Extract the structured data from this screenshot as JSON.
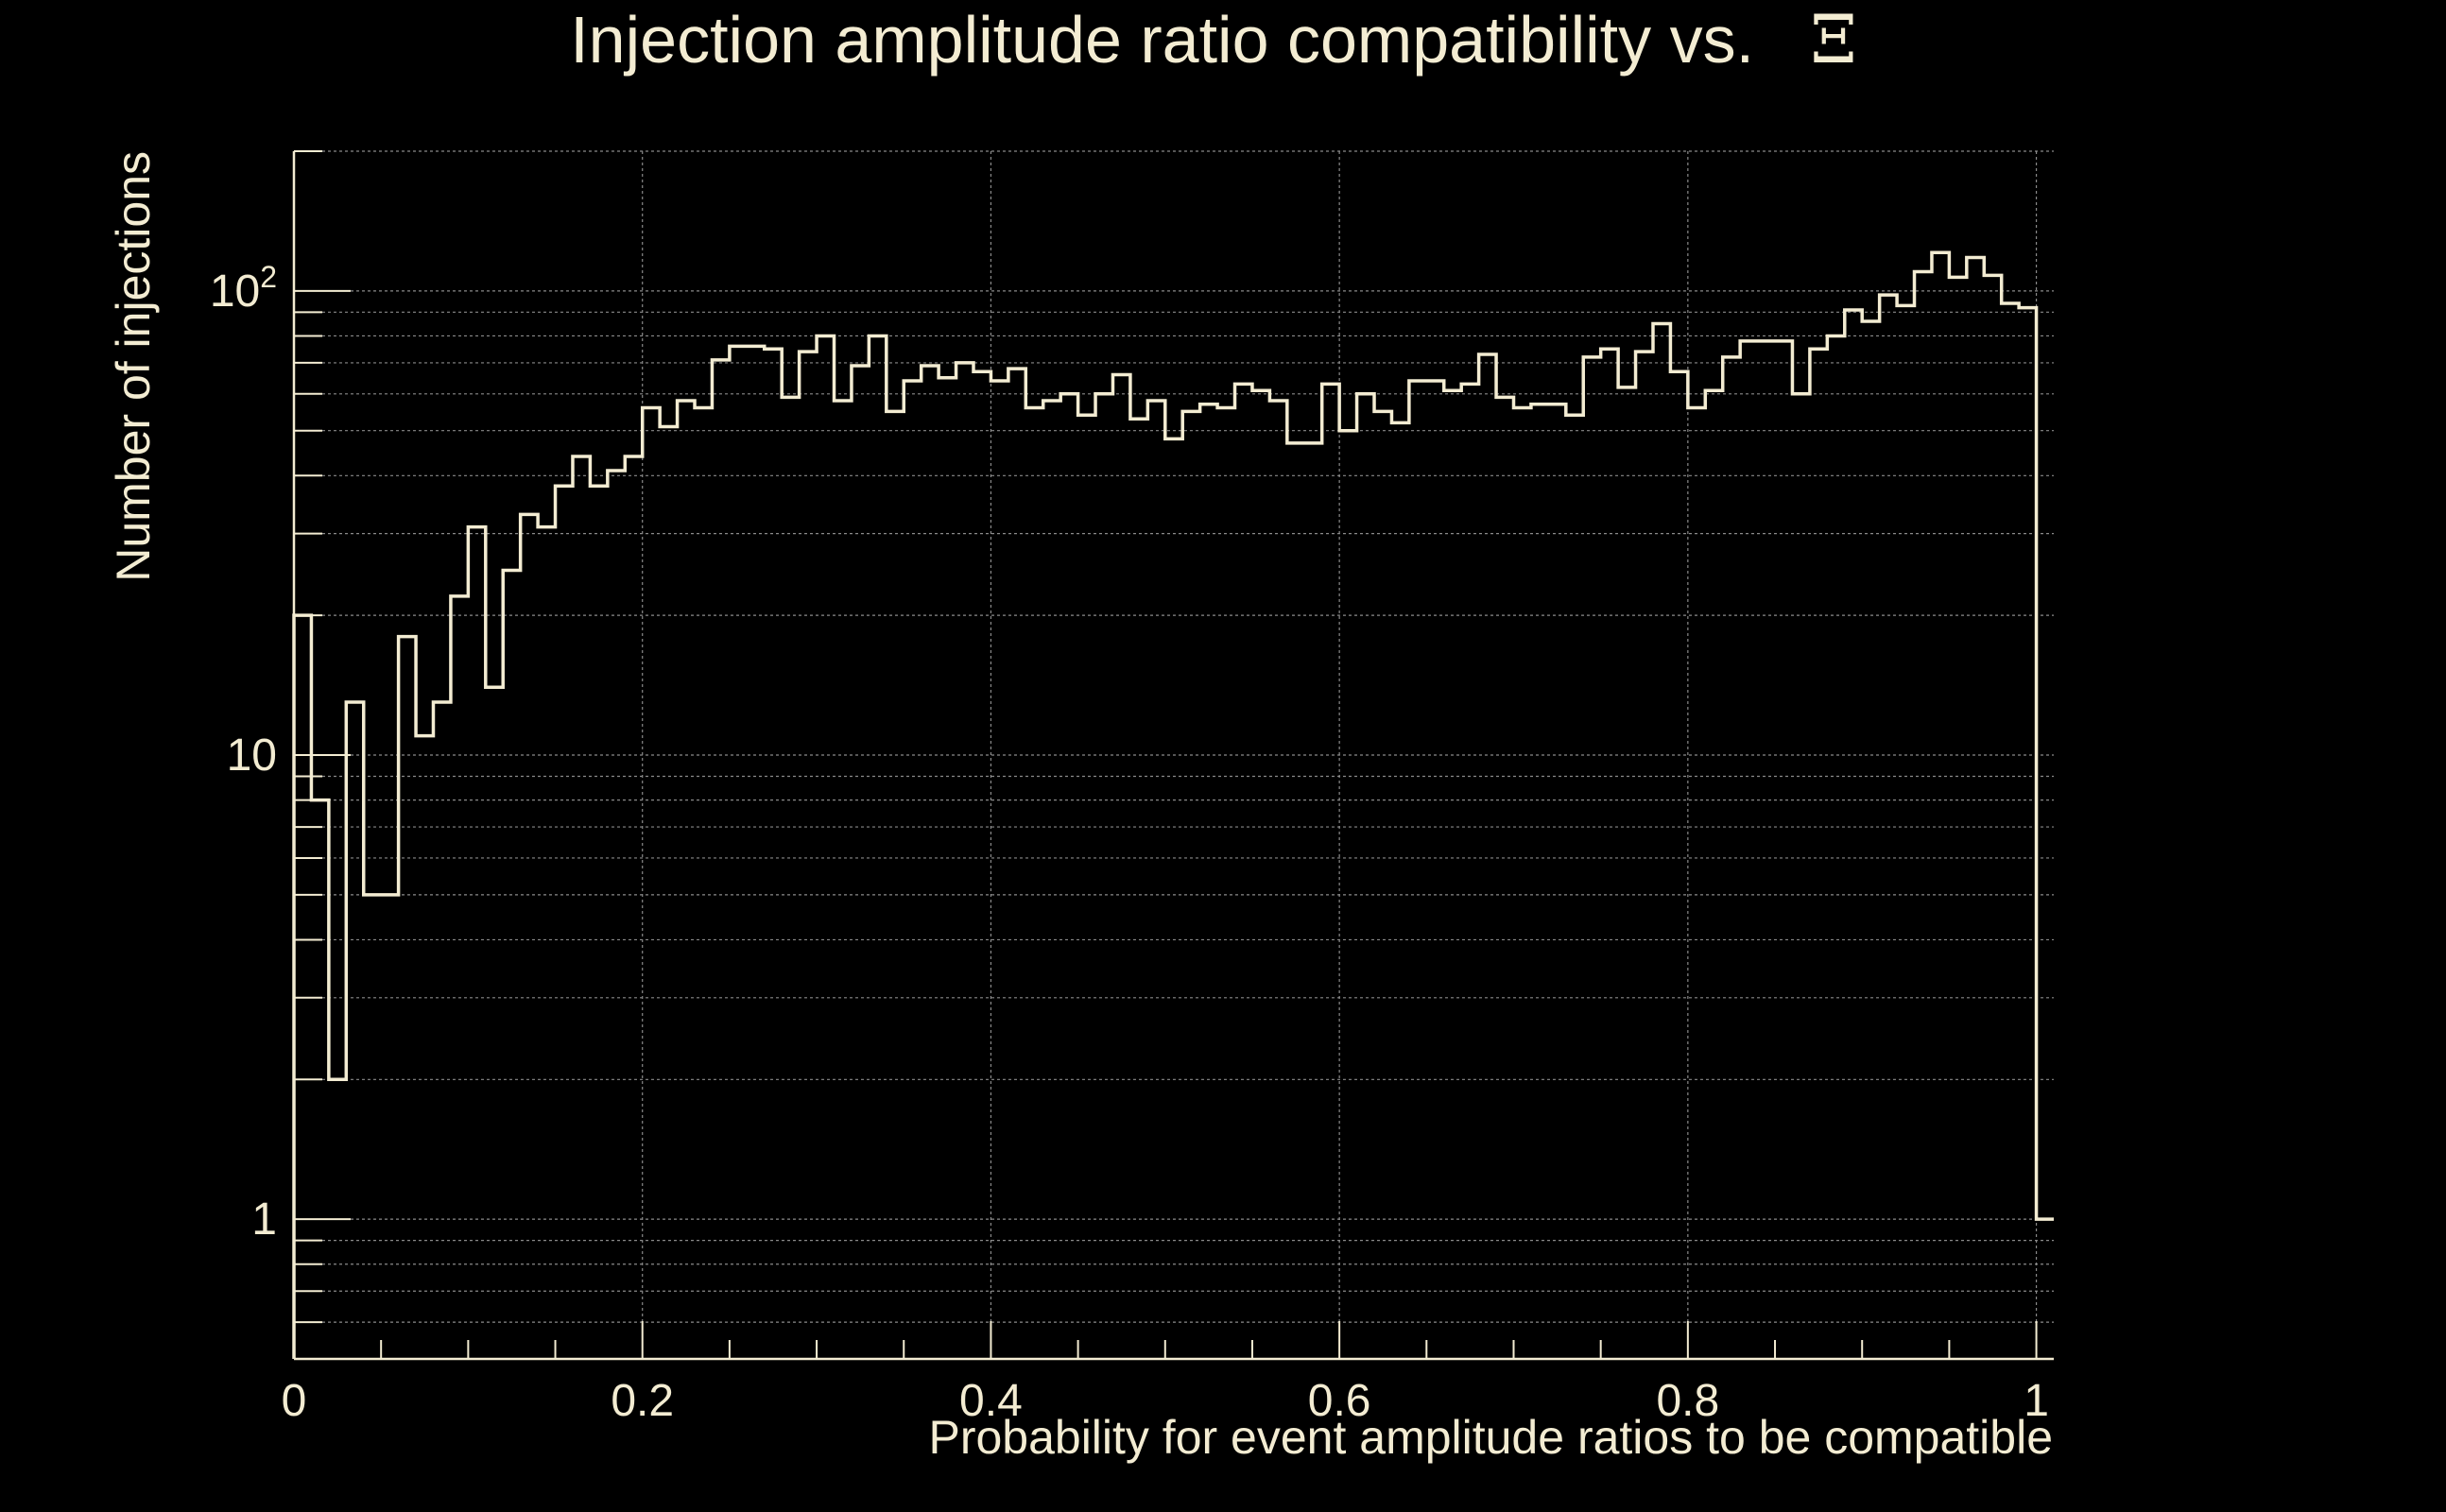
{
  "chart_data": {
    "type": "histogram",
    "title": "Injection amplitude ratio compatibility vs.",
    "title_symbol": "Ξ",
    "xlabel": "Probability for event amplitude ratios to be compatible",
    "ylabel": "Number of injections",
    "xlim": [
      0,
      1.01
    ],
    "ylim": [
      0.5,
      200
    ],
    "y_scale": "log",
    "grid": true,
    "x_ticks": [
      {
        "value": 0,
        "label": "0"
      },
      {
        "value": 0.2,
        "label": "0.2"
      },
      {
        "value": 0.4,
        "label": "0.4"
      },
      {
        "value": 0.6,
        "label": "0.6"
      },
      {
        "value": 0.8,
        "label": "0.8"
      },
      {
        "value": 1,
        "label": "1"
      }
    ],
    "y_ticks": [
      {
        "value": 1,
        "label": "1"
      },
      {
        "value": 10,
        "label": "10"
      },
      {
        "value": 100,
        "label": "10",
        "sup": "2"
      }
    ],
    "bin_width": 0.01,
    "bins_start": 0,
    "values": [
      20,
      8,
      2,
      13,
      5,
      5,
      18,
      11,
      13,
      22,
      31,
      14,
      25,
      33,
      31,
      38,
      44,
      38,
      41,
      44,
      56,
      51,
      58,
      56,
      71,
      76,
      76,
      75,
      59,
      74,
      80,
      58,
      69,
      80,
      55,
      64,
      69,
      65,
      70,
      67,
      64,
      68,
      56,
      58,
      60,
      54,
      60,
      66,
      53,
      58,
      48,
      55,
      57,
      56,
      63,
      61,
      58,
      47,
      47,
      63,
      50,
      60,
      55,
      52,
      64,
      64,
      61,
      63,
      73,
      59,
      56,
      57,
      57,
      54,
      72,
      75,
      62,
      74,
      85,
      67,
      56,
      61,
      72,
      78,
      78,
      78,
      60,
      75,
      80,
      91,
      86,
      98,
      93,
      110,
      121,
      107,
      118,
      108,
      94,
      92,
      1
    ]
  }
}
